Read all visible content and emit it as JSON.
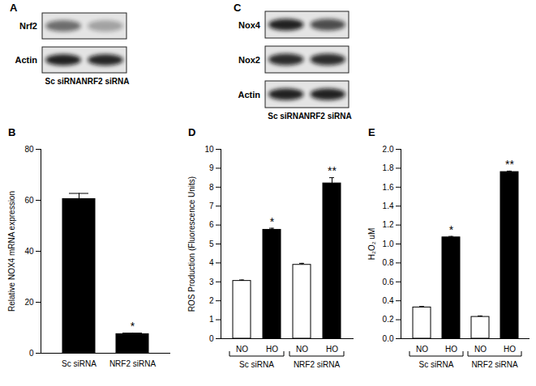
{
  "blots": [
    {
      "panel": "A",
      "rows": [
        "Nrf2",
        "Actin"
      ],
      "lanes": [
        "Sc siRNA",
        "NRF2 siRNA"
      ]
    },
    {
      "panel": "C",
      "rows": [
        "Nox4",
        "Nox2",
        "Actin"
      ],
      "lanes": [
        "Sc siRNA",
        "NRF2 siRNA"
      ]
    }
  ],
  "chart_data": [
    {
      "panel": "B",
      "type": "bar",
      "ylabel": "Relative NOX4 mRNA expression",
      "categories": [
        "Sc siRNA",
        "NRF2 siRNA"
      ],
      "values": [
        60.5,
        7.5
      ],
      "errors": [
        2.2,
        0.4
      ],
      "significance": [
        null,
        "*"
      ],
      "color": "#000000",
      "ylim": [
        0,
        80
      ],
      "yticks": [
        0,
        20,
        40,
        60,
        80
      ]
    },
    {
      "panel": "D",
      "type": "bar",
      "ylabel": "ROS Production (Fluorescence Units)",
      "categories": [
        "NO",
        "HO",
        "NO",
        "HO"
      ],
      "groups": [
        "Sc siRNA",
        "Sc siRNA",
        "NRF2 siRNA",
        "NRF2 siRNA"
      ],
      "values": [
        3.05,
        5.75,
        3.9,
        8.2
      ],
      "errors": [
        0.05,
        0.08,
        0.08,
        0.3
      ],
      "significance": [
        null,
        "*",
        null,
        "**"
      ],
      "colors": [
        "#ffffff",
        "#000000",
        "#ffffff",
        "#000000"
      ],
      "ylim": [
        0,
        10
      ],
      "yticks": [
        0,
        1,
        2,
        3,
        4,
        5,
        6,
        7,
        8,
        9,
        10
      ]
    },
    {
      "panel": "E",
      "type": "bar",
      "ylabel": "H₂O₂ uM",
      "categories": [
        "NO",
        "HO",
        "NO",
        "HO"
      ],
      "groups": [
        "Sc siRNA",
        "Sc siRNA",
        "NRF2 siRNA",
        "NRF2 siRNA"
      ],
      "values": [
        0.33,
        1.07,
        0.23,
        1.76
      ],
      "errors": [
        0.01,
        0.01,
        0.01,
        0.01
      ],
      "significance": [
        null,
        "*",
        null,
        "**"
      ],
      "colors": [
        "#ffffff",
        "#000000",
        "#ffffff",
        "#000000"
      ],
      "ylim": [
        0,
        2
      ],
      "yticks": [
        0,
        0.2,
        0.4,
        0.6,
        0.8,
        1,
        1.2,
        1.4,
        1.6,
        1.8,
        2
      ]
    }
  ]
}
